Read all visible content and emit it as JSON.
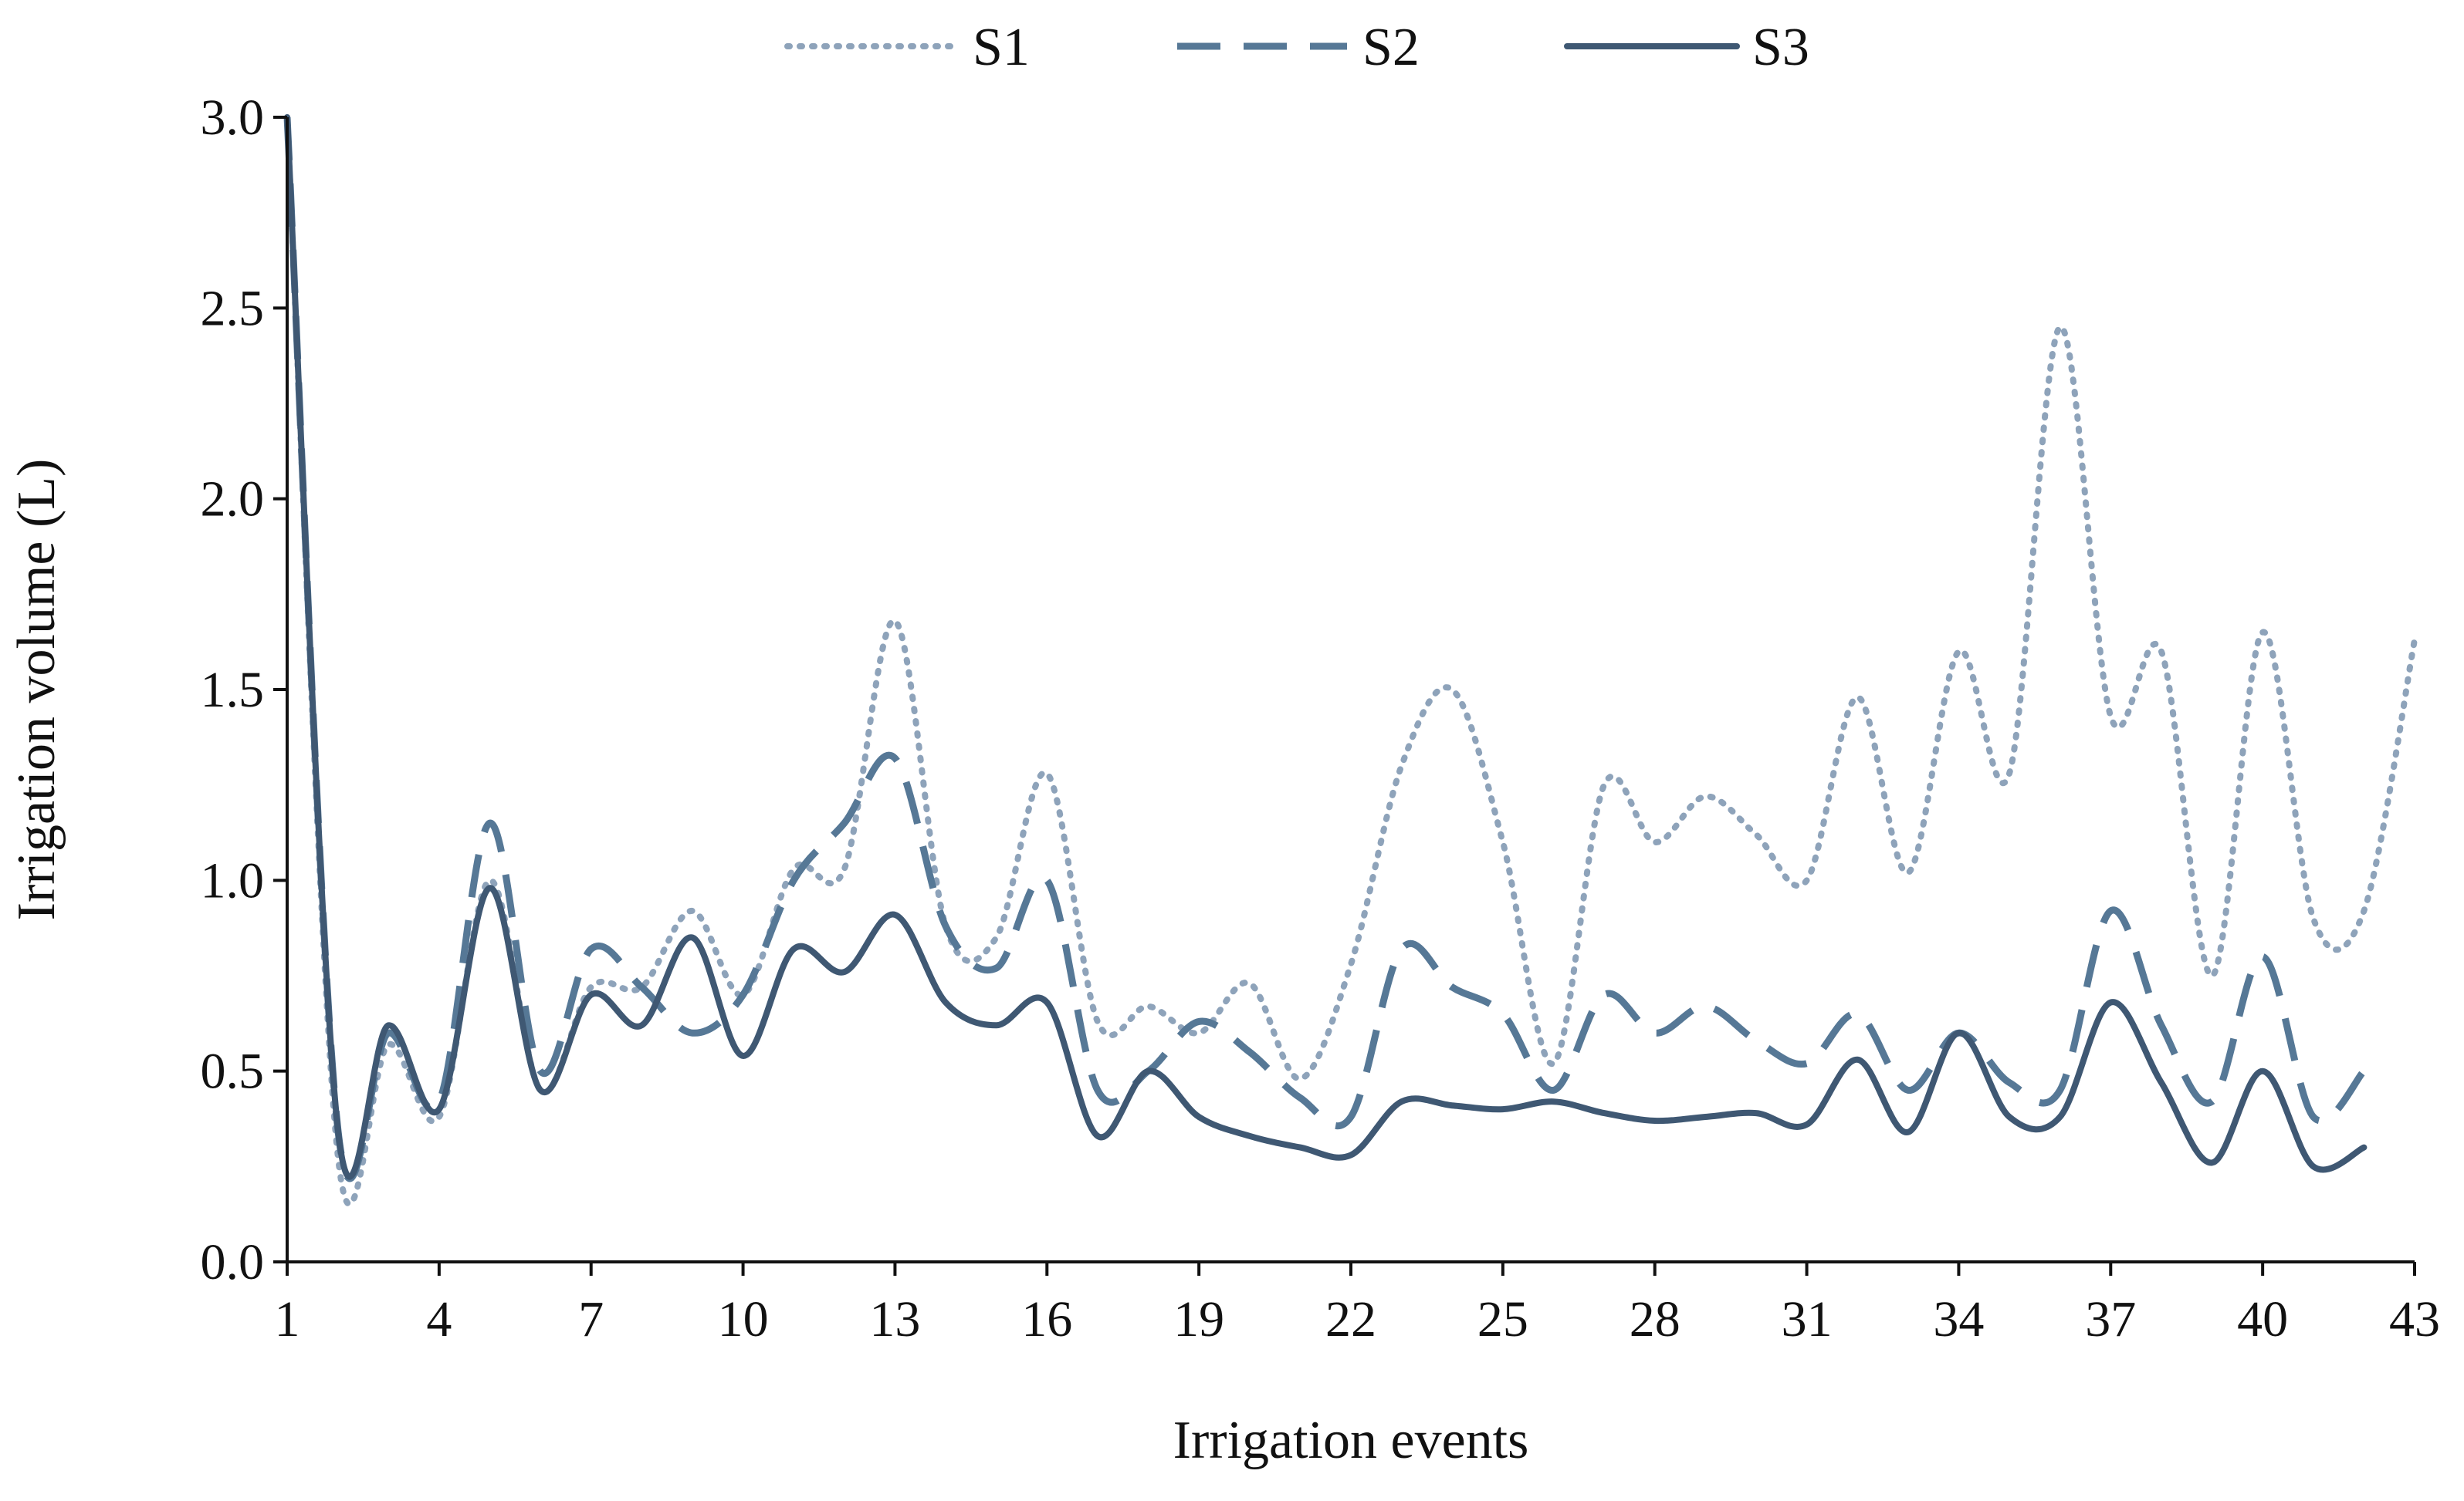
{
  "chart_data": {
    "type": "line",
    "title": "",
    "xlabel": "Irrigation events",
    "ylabel": "Irrigation volume (L)",
    "xlim": [
      1,
      43
    ],
    "ylim": [
      0,
      3.0
    ],
    "x_ticks": [
      "1",
      "4",
      "7",
      "10",
      "13",
      "16",
      "19",
      "22",
      "25",
      "28",
      "31",
      "34",
      "37",
      "40",
      "43"
    ],
    "y_ticks": [
      "0.0",
      "0.5",
      "1.0",
      "1.5",
      "2.0",
      "2.5",
      "3.0"
    ],
    "x": [
      1,
      2,
      3,
      4,
      5,
      6,
      7,
      8,
      9,
      10,
      11,
      12,
      13,
      14,
      15,
      16,
      17,
      18,
      19,
      20,
      21,
      22,
      23,
      24,
      25,
      26,
      27,
      28,
      29,
      30,
      31,
      32,
      33,
      34,
      35,
      36,
      37,
      38,
      39,
      40,
      41,
      42,
      43
    ],
    "legend_position": "top-center",
    "series": [
      {
        "name": "S1",
        "style": "dotted",
        "color": "#8ea3ba",
        "values": [
          3.0,
          0.28,
          0.57,
          0.38,
          1.0,
          0.45,
          0.72,
          0.72,
          0.92,
          0.7,
          1.03,
          1.03,
          1.68,
          0.88,
          0.85,
          1.28,
          0.63,
          0.67,
          0.6,
          0.73,
          0.48,
          0.78,
          1.3,
          1.5,
          1.1,
          0.52,
          1.25,
          1.1,
          1.22,
          1.12,
          1.0,
          1.48,
          1.02,
          1.6,
          1.28,
          2.45,
          1.43,
          1.6,
          0.75,
          1.65,
          0.9,
          0.92,
          1.63
        ]
      },
      {
        "name": "S2",
        "style": "dashed",
        "color": "#567896",
        "values": [
          3.0,
          0.35,
          0.6,
          0.42,
          1.15,
          0.5,
          0.82,
          0.72,
          0.6,
          0.7,
          1.0,
          1.15,
          1.32,
          0.88,
          0.77,
          1.0,
          0.45,
          0.5,
          0.63,
          0.55,
          0.43,
          0.38,
          0.82,
          0.72,
          0.65,
          0.45,
          0.7,
          0.6,
          0.67,
          0.58,
          0.52,
          0.65,
          0.45,
          0.6,
          0.47,
          0.45,
          0.92,
          0.62,
          0.42,
          0.8,
          0.38,
          0.5,
          null
        ]
      },
      {
        "name": "S3",
        "style": "solid",
        "color": "#3f5873",
        "values": [
          3.0,
          0.35,
          0.62,
          0.4,
          0.98,
          0.45,
          0.7,
          0.62,
          0.85,
          0.54,
          0.82,
          0.76,
          0.91,
          0.68,
          0.62,
          0.68,
          0.33,
          0.5,
          0.38,
          0.33,
          0.3,
          0.28,
          0.42,
          0.41,
          0.4,
          0.42,
          0.39,
          0.37,
          0.38,
          0.39,
          0.36,
          0.53,
          0.34,
          0.6,
          0.38,
          0.38,
          0.68,
          0.47,
          0.26,
          0.5,
          0.25,
          0.3,
          null
        ]
      }
    ]
  }
}
